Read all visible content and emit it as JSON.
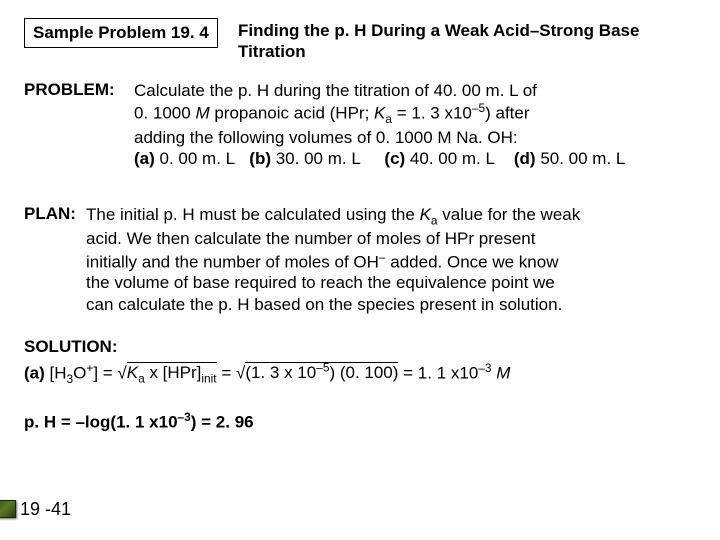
{
  "box_label": "Sample Problem 19. 4",
  "title": "Finding the p. H During a Weak Acid–Strong Base Titration",
  "problem_label": "PROBLEM:",
  "problem_l1": "Calculate the p. H during the titration of 40. 00 m. L of",
  "problem_l2a": "0. 1000 ",
  "problem_l2b": " propanoic acid (HPr; ",
  "problem_l2c": " = 1. 3 x10",
  "problem_l2d": ") after",
  "problem_l3": "adding the following volumes of 0. 1000 M Na. OH:",
  "opt_a": "(a)",
  "opt_a_v": " 0. 00 m. L",
  "opt_b": "(b)",
  "opt_b_v": "  30. 00 m. L",
  "opt_c": "(c)",
  "opt_c_v": "  40. 00 m. L",
  "opt_d": "(d)",
  "opt_d_v": "  50. 00 m. L",
  "plan_label": "PLAN:",
  "plan_l1a": "The initial p. H must be calculated using the ",
  "plan_l1b": " value for the weak",
  "plan_l2": "acid. We then calculate the number of moles of HPr present",
  "plan_l3a": "initially and the number of moles of OH",
  "plan_l3b": " added. Once we know",
  "plan_l4": "the volume of base required to reach the equivalence point we",
  "plan_l5": "can calculate the p. H based on the species present in solution.",
  "solution_label": "SOLUTION:",
  "sol_a": "(a)",
  "sol_h3o": "  [H",
  "sol_eq": "] = √",
  "sol_ka_expr": " x [HPr]",
  "sol_eq2": " = √",
  "sol_num": "(1. 3 x 10",
  "sol_num2": ") (0. 100)",
  "sol_result": " = 1. 1 x10",
  "ph_line_a": "p. H = –log(1. 1 x10",
  "ph_line_b": ") = 2. 96",
  "sup_minus5": "–5",
  "sup_minus3": "–3",
  "sup_minus": "–",
  "sup_plus": "+",
  "sub_a": "a",
  "sub_3": "3",
  "sub_init": "init",
  "italic_M": "M",
  "italic_K": "K",
  "slide": "19 -41"
}
